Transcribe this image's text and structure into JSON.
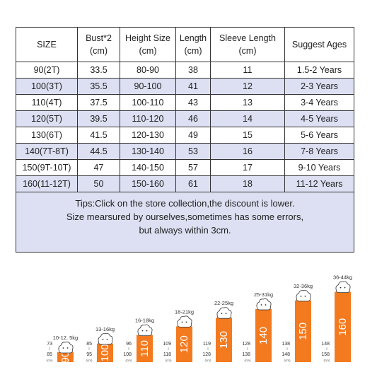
{
  "table": {
    "headers": [
      [
        "SIZE",
        ""
      ],
      [
        "Bust*2",
        "(cm)"
      ],
      [
        "Height Size",
        "(cm)"
      ],
      [
        "Length",
        "(cm)"
      ],
      [
        "Sleeve Length",
        "(cm)"
      ],
      [
        "Suggest Ages",
        ""
      ]
    ],
    "rows": [
      [
        "90(2T)",
        "33.5",
        "80-90",
        "38",
        "11",
        "1.5-2 Years"
      ],
      [
        "100(3T)",
        "35.5",
        "90-100",
        "41",
        "12",
        "2-3 Years"
      ],
      [
        "110(4T)",
        "37.5",
        "100-110",
        "43",
        "13",
        "3-4 Years"
      ],
      [
        "120(5T)",
        "39.5",
        "110-120",
        "46",
        "14",
        "4-5 Years"
      ],
      [
        "130(6T)",
        "41.5",
        "120-130",
        "49",
        "15",
        "5-6 Years"
      ],
      [
        "140(7T-8T)",
        "44.5",
        "130-140",
        "53",
        "16",
        "7-8 Years"
      ],
      [
        "150(9T-10T)",
        "47",
        "140-150",
        "57",
        "17",
        "9-10 Years"
      ],
      [
        "160(11-12T)",
        "50",
        "150-160",
        "61",
        "18",
        "11-12 Years"
      ]
    ],
    "tips": [
      "Tips:Click on the store collection,the discount is lower.",
      "Size mearsured by ourselves,sometimes has some errors,",
      "but always within 3cm."
    ]
  },
  "colors": {
    "shade": "#dce0f2",
    "bar": "#f47a1f",
    "border": "#333333"
  },
  "height_chart": {
    "unit_label": "(cm)",
    "items": [
      {
        "size": "90",
        "weight": "10-12. 5kg",
        "h_min": "73",
        "h_max": "85"
      },
      {
        "size": "100",
        "weight": "13-16kg",
        "h_min": "85",
        "h_max": "95"
      },
      {
        "size": "110",
        "weight": "16-18kg",
        "h_min": "96",
        "h_max": "108"
      },
      {
        "size": "120",
        "weight": "18-21kg",
        "h_min": "109",
        "h_max": "118"
      },
      {
        "size": "130",
        "weight": "22-25kg",
        "h_min": "119",
        "h_max": "128"
      },
      {
        "size": "140",
        "weight": "25-31kg",
        "h_min": "128",
        "h_max": "138"
      },
      {
        "size": "150",
        "weight": "32-36kg",
        "h_min": "138",
        "h_max": "148"
      },
      {
        "size": "160",
        "weight": "36-44kg",
        "h_min": "148",
        "h_max": "158"
      }
    ]
  }
}
